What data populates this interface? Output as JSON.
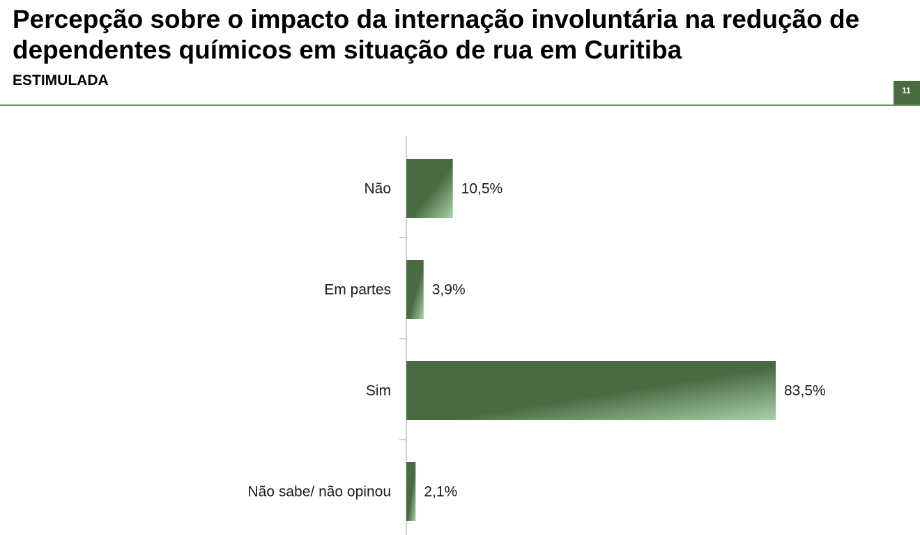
{
  "header": {
    "title": "Percepção sobre o impacto da internação involuntária na redução de dependentes químicos em situação de rua em Curitiba",
    "subtitle": "ESTIMULADA",
    "page_number": "11"
  },
  "colors": {
    "bar_dark": "#4a6b42",
    "bar_light": "#a9d1a9",
    "rule": "#6b8f5e",
    "axis": "#bfbfbf"
  },
  "chart_data": {
    "type": "bar",
    "orientation": "horizontal",
    "categories": [
      "Não",
      "Em partes",
      "Sim",
      "Não sabe/ não opinou"
    ],
    "values": [
      10.5,
      3.9,
      83.5,
      2.1
    ],
    "value_labels": [
      "10,5%",
      "3,9%",
      "83,5%",
      "2,1%"
    ],
    "unit": "%",
    "xlim": [
      0,
      100
    ],
    "grid": false,
    "legend": "none"
  }
}
